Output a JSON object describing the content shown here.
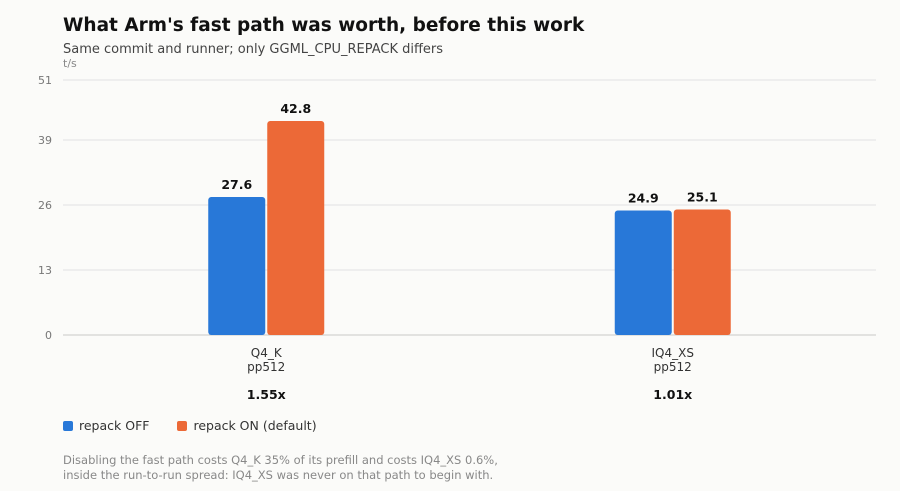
{
  "title": "What Arm's fast path was worth, before this work",
  "subtitle": "Same commit and runner; only GGML_CPU_REPACK differs",
  "unit_label": "t/s",
  "colors": {
    "repack_off": "#2878d8",
    "repack_on": "#ec6937",
    "grid": "#e2e2e2",
    "axis": "#c8c8c8"
  },
  "legend": [
    {
      "label": "repack OFF",
      "color": "#2878d8"
    },
    {
      "label": "repack ON (default)",
      "color": "#ec6937"
    }
  ],
  "note": [
    "Disabling the fast path costs Q4_K 35% of its prefill and costs IQ4_XS 0.6%,",
    "inside the run-to-run spread: IQ4_XS was never on that path to begin with."
  ],
  "chart_data": {
    "type": "bar",
    "categories": [
      "Q4_K",
      "IQ4_XS"
    ],
    "category_sublabels": [
      "pp512",
      "pp512"
    ],
    "category_ratios": [
      "1.55x",
      "1.01x"
    ],
    "series": [
      {
        "name": "repack OFF",
        "values": [
          27.6,
          24.9
        ],
        "labels": [
          "27.6",
          "24.9"
        ]
      },
      {
        "name": "repack ON (default)",
        "values": [
          42.8,
          25.1
        ],
        "labels": [
          "42.8",
          "25.1"
        ]
      }
    ],
    "ylabel": "t/s",
    "ylim": [
      0,
      51
    ],
    "yticks": [
      0,
      13,
      26,
      39,
      51
    ],
    "grid": true,
    "legend_position": "bottom-left"
  }
}
